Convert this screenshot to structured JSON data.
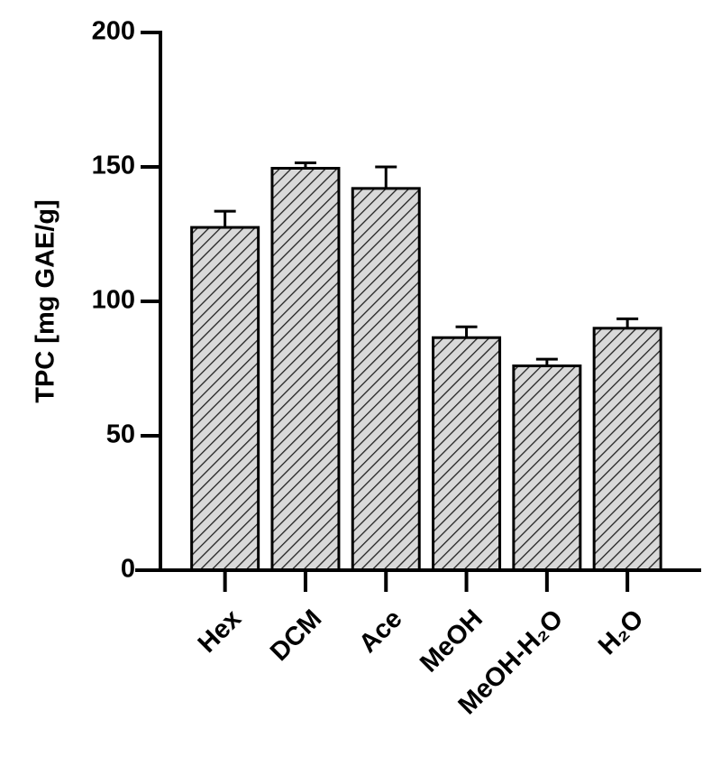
{
  "chart_data": {
    "type": "bar",
    "y_label": "TPC [mg GAE/g]",
    "categories": [
      "Hex",
      "DCM",
      "Ace",
      "MeOH",
      "MeOH-H₂O",
      "H₂O"
    ],
    "values": [
      127.5,
      149.5,
      142,
      86.5,
      76,
      90
    ],
    "errors": [
      6,
      2,
      8,
      4,
      2.5,
      3.5
    ],
    "color": "#d9d9d9",
    "hatch_color": "#222222",
    "ylim": [
      0,
      200
    ],
    "yticks": [
      0,
      50,
      100,
      150,
      200
    ]
  }
}
